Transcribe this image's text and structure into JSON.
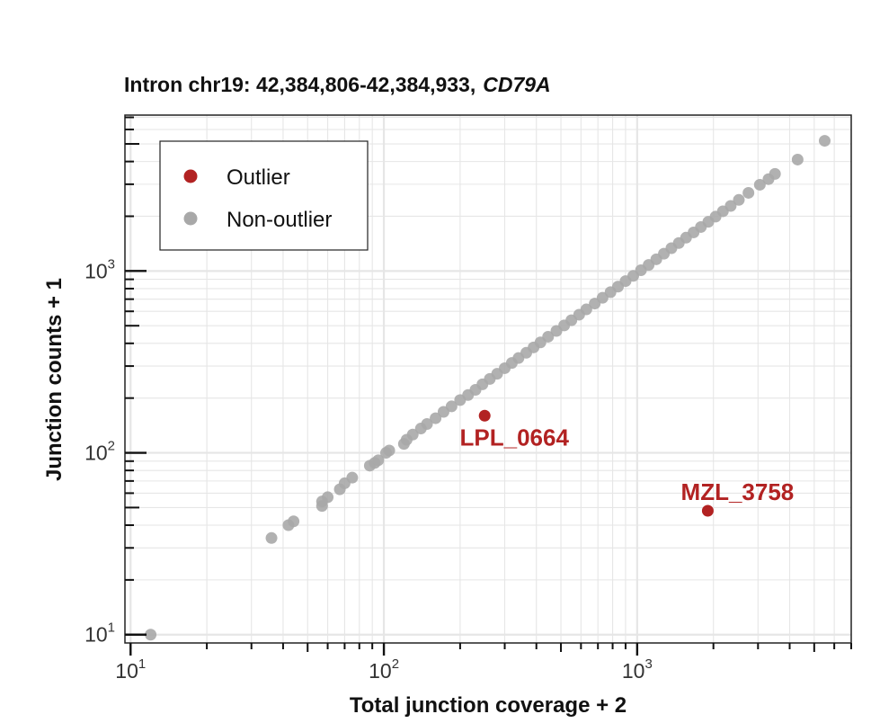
{
  "colors": {
    "outlier": "#b22222",
    "non_outlier": "#a8a8a8",
    "grid": "#e6e6e6",
    "frame": "#222222"
  },
  "chart_data": {
    "type": "scatter",
    "title": "Intron chr19: 42,384,806-42,384,933,",
    "title_gene": "CD79A",
    "xlabel": "Total junction coverage + 2",
    "ylabel": "Junction counts + 1",
    "x_scale": "log10",
    "y_scale": "log10",
    "xlim": [
      9.5,
      7000
    ],
    "ylim": [
      9.0,
      7200
    ],
    "x_ticks": [
      {
        "base": "10",
        "exp": "1",
        "value": 10
      },
      {
        "base": "10",
        "exp": "2",
        "value": 100
      },
      {
        "base": "10",
        "exp": "3",
        "value": 1000
      }
    ],
    "y_ticks": [
      {
        "base": "10",
        "exp": "1",
        "value": 10
      },
      {
        "base": "10",
        "exp": "2",
        "value": 100
      },
      {
        "base": "10",
        "exp": "3",
        "value": 1000
      }
    ],
    "grid": true,
    "legend": {
      "position": "top-left",
      "entries": [
        {
          "label": "Outlier",
          "color": "#b22222"
        },
        {
          "label": "Non-outlier",
          "color": "#a8a8a8"
        }
      ]
    },
    "series": [
      {
        "name": "Outlier",
        "color": "#b22222",
        "points": [
          {
            "x": 250,
            "y": 160,
            "label": "LPL_0664"
          },
          {
            "x": 1900,
            "y": 48,
            "label": "MZL_3758"
          }
        ]
      },
      {
        "name": "Non-outlier",
        "color": "#a8a8a8",
        "points": [
          [
            12,
            10
          ],
          [
            36,
            34
          ],
          [
            42,
            40
          ],
          [
            44,
            42
          ],
          [
            57,
            51
          ],
          [
            57,
            54
          ],
          [
            60,
            57
          ],
          [
            67,
            63
          ],
          [
            70,
            68
          ],
          [
            75,
            73
          ],
          [
            88,
            85
          ],
          [
            92,
            88
          ],
          [
            95,
            91
          ],
          [
            102,
            100
          ],
          [
            105,
            103
          ],
          [
            120,
            112
          ],
          [
            123,
            118
          ],
          [
            130,
            126
          ],
          [
            140,
            136
          ],
          [
            148,
            144
          ],
          [
            160,
            155
          ],
          [
            172,
            168
          ],
          [
            185,
            180
          ],
          [
            200,
            195
          ],
          [
            215,
            208
          ],
          [
            230,
            222
          ],
          [
            245,
            238
          ],
          [
            262,
            255
          ],
          [
            280,
            272
          ],
          [
            300,
            292
          ],
          [
            320,
            312
          ],
          [
            340,
            332
          ],
          [
            365,
            355
          ],
          [
            390,
            380
          ],
          [
            415,
            405
          ],
          [
            445,
            435
          ],
          [
            480,
            468
          ],
          [
            515,
            502
          ],
          [
            550,
            536
          ],
          [
            590,
            575
          ],
          [
            630,
            615
          ],
          [
            680,
            662
          ],
          [
            730,
            712
          ],
          [
            785,
            765
          ],
          [
            840,
            820
          ],
          [
            900,
            880
          ],
          [
            965,
            940
          ],
          [
            1035,
            1010
          ],
          [
            1110,
            1080
          ],
          [
            1190,
            1160
          ],
          [
            1275,
            1245
          ],
          [
            1365,
            1335
          ],
          [
            1460,
            1425
          ],
          [
            1560,
            1525
          ],
          [
            1670,
            1630
          ],
          [
            1785,
            1745
          ],
          [
            1910,
            1865
          ],
          [
            2040,
            1990
          ],
          [
            2180,
            2130
          ],
          [
            2340,
            2280
          ],
          [
            2520,
            2460
          ],
          [
            2750,
            2690
          ],
          [
            3050,
            2980
          ],
          [
            3300,
            3200
          ],
          [
            3500,
            3420
          ],
          [
            4300,
            4100
          ],
          [
            5500,
            5200
          ]
        ]
      }
    ],
    "annotations": [
      {
        "text": "LPL_0664",
        "color": "#b22222"
      },
      {
        "text": "MZL_3758",
        "color": "#b22222"
      }
    ]
  }
}
